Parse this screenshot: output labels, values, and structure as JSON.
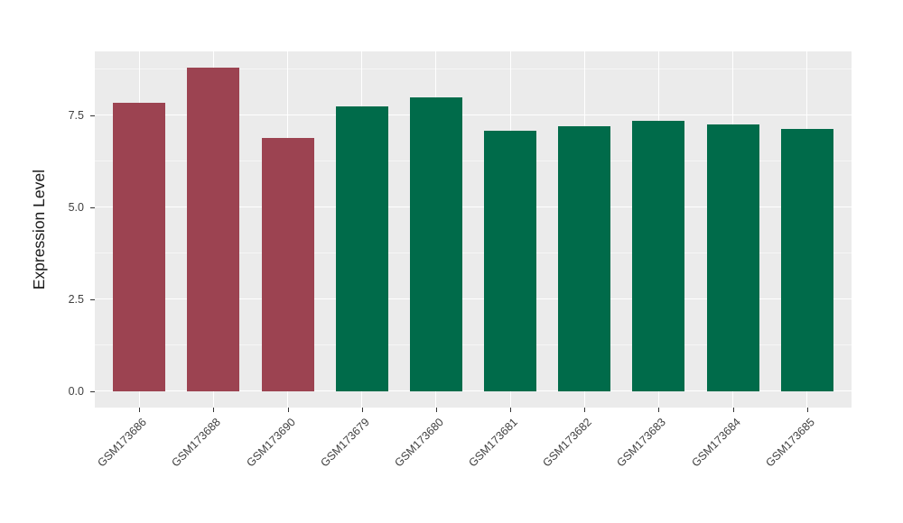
{
  "chart_data": {
    "type": "bar",
    "title": "",
    "xlabel": "",
    "ylabel": "Expression Level",
    "categories": [
      "GSM173686",
      "GSM173688",
      "GSM173690",
      "GSM173679",
      "GSM173680",
      "GSM173681",
      "GSM173682",
      "GSM173683",
      "GSM173684",
      "GSM173685"
    ],
    "values": [
      7.85,
      8.8,
      6.9,
      7.75,
      8.0,
      7.1,
      7.2,
      7.35,
      7.25,
      7.15
    ],
    "bar_colors": [
      "#9C4351",
      "#9C4351",
      "#9C4351",
      "#006B4A",
      "#006B4A",
      "#006B4A",
      "#006B4A",
      "#006B4A",
      "#006B4A",
      "#006B4A"
    ],
    "group_colors": {
      "red_group": "#9C4351",
      "green_group": "#006B4A"
    },
    "y_ticks": [
      0.0,
      2.5,
      5.0,
      7.5
    ],
    "y_tick_labels": [
      "0.0",
      "2.5",
      "5.0",
      "7.5"
    ],
    "y_minor_ticks": [
      1.25,
      3.75,
      6.25,
      8.75
    ],
    "ylim": [
      0,
      9.25
    ],
    "grid": "on",
    "legend": "none",
    "panel_background": "#EBEBEB",
    "gridline_color": "#FFFFFF",
    "tick_color": "#333333",
    "axis_text_color": "#404040"
  }
}
